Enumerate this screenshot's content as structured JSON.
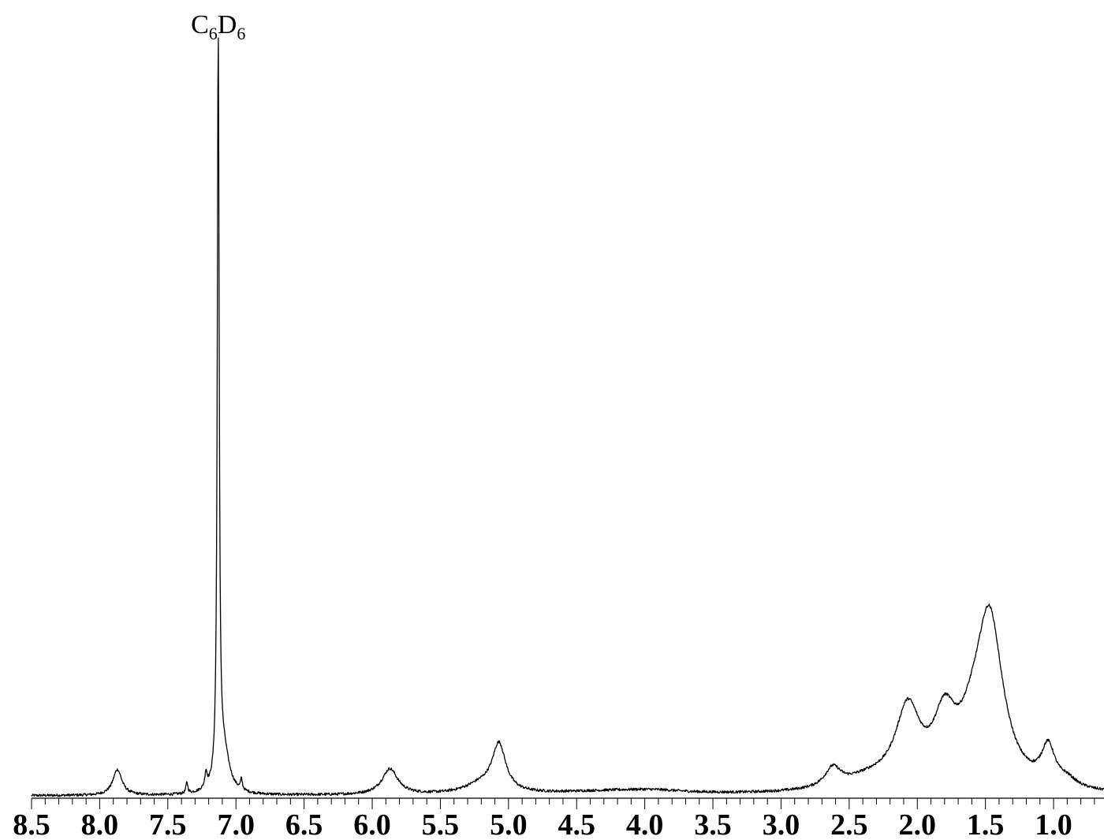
{
  "chart_data": {
    "type": "line",
    "title": "",
    "xlabel": "",
    "ylabel": "",
    "xlim": [
      8.5,
      0.63
    ],
    "x_reversed": true,
    "ylim": [
      0,
      1.0
    ],
    "grid": false,
    "legend": "none",
    "major_ticks": [
      8.5,
      8.0,
      7.5,
      7.0,
      6.5,
      6.0,
      5.5,
      5.0,
      4.5,
      4.0,
      3.5,
      3.0,
      2.5,
      2.0,
      1.5,
      1.0
    ],
    "tick_labels": [
      "8.5",
      "8.0",
      "7.5",
      "7.0",
      "6.5",
      "6.0",
      "5.5",
      "5.0",
      "4.5",
      "4.0",
      "3.5",
      "3.0",
      "2.5",
      "2.0",
      "1.5",
      "1.0"
    ],
    "minor_tick_step": 0.1,
    "annotations": [
      {
        "text": "C",
        "sub": "6",
        "text2": "D",
        "sub2": "6",
        "x": 7.13
      }
    ],
    "series": [
      {
        "color": "#000000",
        "peaks": [
          {
            "x": 7.87,
            "height": 0.034,
            "width": 0.04
          },
          {
            "x": 7.36,
            "height": 0.015,
            "width": 0.008
          },
          {
            "x": 7.22,
            "height": 0.02,
            "width": 0.01
          },
          {
            "x": 7.13,
            "height": 1.0,
            "width": 0.008
          },
          {
            "x": 7.09,
            "height": 0.055,
            "width": 0.05
          },
          {
            "x": 6.96,
            "height": 0.014,
            "width": 0.008
          },
          {
            "x": 5.87,
            "height": 0.034,
            "width": 0.07
          },
          {
            "x": 5.07,
            "height": 0.062,
            "width": 0.06
          },
          {
            "x": 5.2,
            "height": 0.012,
            "width": 0.15
          },
          {
            "x": 4.3,
            "height": 0.004,
            "width": 0.5
          },
          {
            "x": 3.95,
            "height": 0.004,
            "width": 0.3
          },
          {
            "x": 2.62,
            "height": 0.025,
            "width": 0.07
          },
          {
            "x": 2.35,
            "height": 0.015,
            "width": 0.25
          },
          {
            "x": 2.07,
            "height": 0.1,
            "width": 0.11
          },
          {
            "x": 1.8,
            "height": 0.08,
            "width": 0.1
          },
          {
            "x": 1.47,
            "height": 0.22,
            "width": 0.12
          },
          {
            "x": 1.6,
            "height": 0.04,
            "width": 0.12
          },
          {
            "x": 1.04,
            "height": 0.05,
            "width": 0.06
          },
          {
            "x": 0.9,
            "height": 0.01,
            "width": 0.08
          }
        ]
      }
    ]
  }
}
